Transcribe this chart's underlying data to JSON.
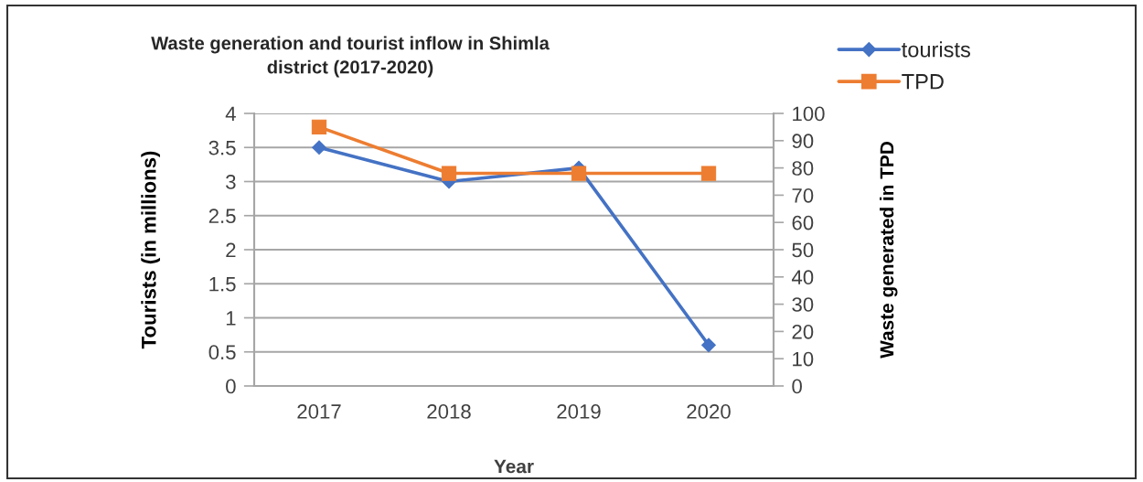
{
  "chart_data": {
    "type": "line",
    "title": "Waste generation and tourist inflow in Shimla\ndistrict (2017-2020)",
    "xlabel": "Year",
    "ylabel": "Tourists (in millions)",
    "y2label": "Waste generated in TPD",
    "categories": [
      "2017",
      "2018",
      "2019",
      "2020"
    ],
    "series": [
      {
        "name": "tourists",
        "color": "#4472c4",
        "values": [
          3.5,
          3,
          3.2,
          0.6
        ],
        "marker": "diamond"
      },
      {
        "name": "TPD",
        "color": "#ed7d31",
        "values": [
          95,
          78,
          78,
          78
        ],
        "axis": "y2",
        "marker": "square"
      }
    ],
    "ylim": [
      0,
      4
    ],
    "yticks": [
      0,
      0.5,
      1,
      1.5,
      2,
      2.5,
      3,
      3.5,
      4
    ],
    "y2lim": [
      0,
      100
    ],
    "y2ticks": [
      0,
      10,
      20,
      30,
      40,
      50,
      60,
      70,
      80,
      90,
      100
    ],
    "grid": "y",
    "legend": "top right",
    "line_style": "solid"
  }
}
